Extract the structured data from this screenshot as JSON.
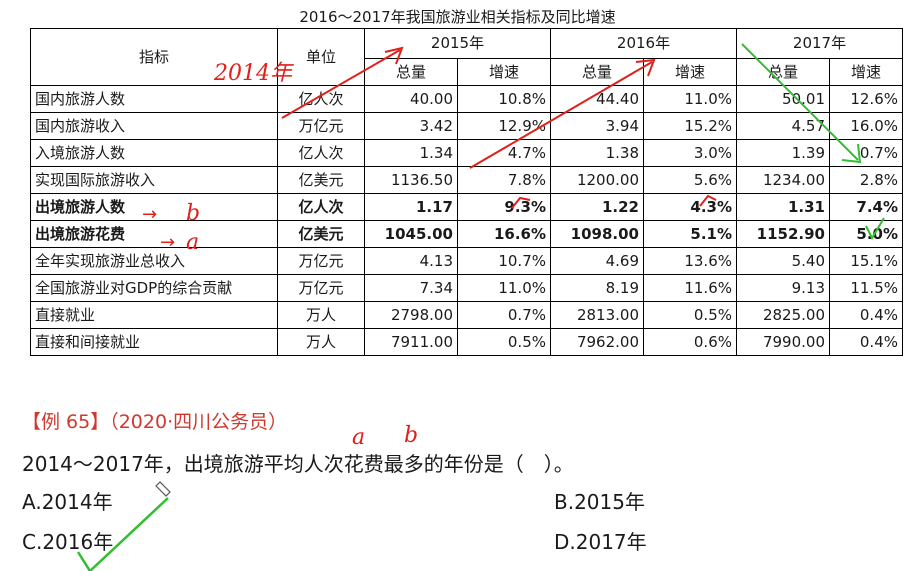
{
  "caption": "2016～2017年我国旅游业相关指标及同比增速",
  "table": {
    "header_indicator": "指标",
    "header_unit": "单位",
    "years": [
      "2015年",
      "2016年",
      "2017年"
    ],
    "sub_total": "总量",
    "sub_growth": "增速",
    "rows": [
      {
        "name": "国内旅游人数",
        "unit": "亿人次",
        "v": [
          "40.00",
          "10.8%",
          "44.40",
          "11.0%",
          "50.01",
          "12.6%"
        ],
        "bold": false
      },
      {
        "name": "国内旅游收入",
        "unit": "万亿元",
        "v": [
          "3.42",
          "12.9%",
          "3.94",
          "15.2%",
          "4.57",
          "16.0%"
        ],
        "bold": false
      },
      {
        "name": "入境旅游人数",
        "unit": "亿人次",
        "v": [
          "1.34",
          "4.7%",
          "1.38",
          "3.0%",
          "1.39",
          "0.7%"
        ],
        "bold": false
      },
      {
        "name": "实现国际旅游收入",
        "unit": "亿美元",
        "v": [
          "1136.50",
          "7.8%",
          "1200.00",
          "5.6%",
          "1234.00",
          "2.8%"
        ],
        "bold": false
      },
      {
        "name": "出境旅游人数",
        "unit": "亿人次",
        "v": [
          "1.17",
          "9.3%",
          "1.22",
          "4.3%",
          "1.31",
          "7.4%"
        ],
        "bold": true
      },
      {
        "name": "出境旅游花费",
        "unit": "亿美元",
        "v": [
          "1045.00",
          "16.6%",
          "1098.00",
          "5.1%",
          "1152.90",
          "5.0%"
        ],
        "bold": true
      },
      {
        "name": "全年实现旅游业总收入",
        "unit": "万亿元",
        "v": [
          "4.13",
          "10.7%",
          "4.69",
          "13.6%",
          "5.40",
          "15.1%"
        ],
        "bold": false
      },
      {
        "name": "全国旅游业对GDP的综合贡献",
        "unit": "万亿元",
        "v": [
          "7.34",
          "11.0%",
          "8.19",
          "11.6%",
          "9.13",
          "11.5%"
        ],
        "bold": false
      },
      {
        "name": "直接就业",
        "unit": "万人",
        "v": [
          "2798.00",
          "0.7%",
          "2813.00",
          "0.5%",
          "2825.00",
          "0.4%"
        ],
        "bold": false
      },
      {
        "name": "直接和间接就业",
        "unit": "万人",
        "v": [
          "7911.00",
          "0.5%",
          "7962.00",
          "0.6%",
          "7990.00",
          "0.4%"
        ],
        "bold": false
      }
    ]
  },
  "question": {
    "tag": "【例 65】（2020·四川公务员）",
    "text": "2014～2017年，出境旅游平均人次花费最多的年份是（　）。",
    "options": {
      "a": "A.2014年",
      "b": "B.2015年",
      "c": "C.2016年",
      "d": "D.2017年"
    }
  },
  "annotations": {
    "label_2014": "2014年",
    "label_b": "b",
    "label_a": "a",
    "label_a2": "a",
    "label_b2": "b",
    "arrow": "→",
    "red": "#e0201b",
    "green": "#2fbf2f"
  }
}
